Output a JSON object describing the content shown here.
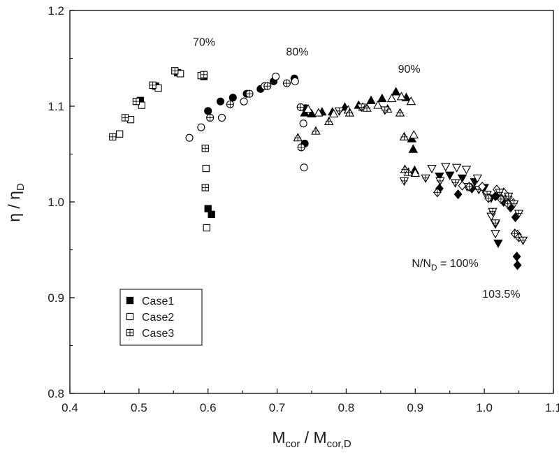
{
  "chart_data": {
    "type": "scatter",
    "title": "",
    "xlabel": {
      "main": "M",
      "sub": "cor",
      "mid": " / M",
      "sub2": "cor,D"
    },
    "ylabel": {
      "main": "η / η",
      "sub": "D"
    },
    "xlim": [
      0.4,
      1.1
    ],
    "ylim": [
      0.8,
      1.2
    ],
    "xticks": [
      "0.4",
      "0.5",
      "0.6",
      "0.7",
      "0.8",
      "0.9",
      "1.0",
      "1.1"
    ],
    "yticks": [
      "0.8",
      "0.9",
      "1.0",
      "1.1",
      "1.2"
    ],
    "grid": false,
    "legend_position": "bottom-left",
    "legend": [
      {
        "label": "Case1",
        "marker": "filled-square"
      },
      {
        "label": "Case2",
        "marker": "open-square"
      },
      {
        "label": "Case3",
        "marker": "crossed-square"
      }
    ],
    "annotations": [
      {
        "text": "70%",
        "x": 0.578,
        "y": 1.163
      },
      {
        "text": "80%",
        "x": 0.713,
        "y": 1.153
      },
      {
        "text": "90%",
        "x": 0.875,
        "y": 1.135
      },
      {
        "parts": [
          "N/N",
          "D",
          " = 100%"
        ],
        "x": 0.895,
        "y": 0.932
      },
      {
        "text": "103.5%",
        "x": 0.997,
        "y": 0.9
      }
    ],
    "series": [
      {
        "name": "Case1",
        "speed": "70%",
        "marker": "square",
        "style": "filled",
        "x": [
          0.502,
          0.524,
          0.556,
          0.594,
          0.6,
          0.605
        ],
        "y": [
          1.106,
          1.121,
          1.135,
          1.131,
          0.993,
          0.987
        ]
      },
      {
        "name": "Case2",
        "speed": "70%",
        "marker": "square",
        "style": "open",
        "x": [
          0.472,
          0.488,
          0.504,
          0.528,
          0.56,
          0.59,
          0.597,
          0.598
        ],
        "y": [
          1.071,
          1.086,
          1.101,
          1.119,
          1.134,
          1.132,
          1.035,
          0.973
        ]
      },
      {
        "name": "Case3",
        "speed": "70%",
        "marker": "square",
        "style": "crossed",
        "x": [
          0.462,
          0.48,
          0.496,
          0.52,
          0.552,
          0.594,
          0.596,
          0.596
        ],
        "y": [
          1.068,
          1.088,
          1.105,
          1.122,
          1.137,
          1.133,
          1.056,
          1.015
        ]
      },
      {
        "name": "Case1",
        "speed": "80%",
        "marker": "circle",
        "style": "filled",
        "x": [
          0.6,
          0.618,
          0.636,
          0.656,
          0.676,
          0.695,
          0.725,
          0.741,
          0.74
        ],
        "y": [
          1.095,
          1.105,
          1.109,
          1.113,
          1.118,
          1.126,
          1.129,
          1.098,
          1.061
        ]
      },
      {
        "name": "Case2",
        "speed": "80%",
        "marker": "circle",
        "style": "open",
        "x": [
          0.573,
          0.59,
          0.62,
          0.652,
          0.682,
          0.698,
          0.726,
          0.738,
          0.739
        ],
        "y": [
          1.067,
          1.078,
          1.088,
          1.105,
          1.121,
          1.131,
          1.126,
          1.082,
          1.036
        ]
      },
      {
        "name": "Case3",
        "speed": "80%",
        "marker": "circle",
        "style": "crossed",
        "x": [
          0.603,
          0.632,
          0.66,
          0.686,
          0.714,
          0.734,
          0.735
        ],
        "y": [
          1.088,
          1.102,
          1.113,
          1.121,
          1.124,
          1.099,
          1.057
        ]
      },
      {
        "name": "Case1",
        "speed": "90%",
        "marker": "triangle-up",
        "style": "filled",
        "x": [
          0.74,
          0.75,
          0.765,
          0.78,
          0.798,
          0.818,
          0.836,
          0.852,
          0.872,
          0.887,
          0.895,
          0.897,
          0.899
        ],
        "y": [
          1.093,
          1.092,
          1.094,
          1.094,
          1.099,
          1.101,
          1.106,
          1.108,
          1.115,
          1.109,
          1.066,
          1.055,
          1.033
        ]
      },
      {
        "name": "Case2",
        "speed": "90%",
        "marker": "triangle-up",
        "style": "open",
        "x": [
          0.745,
          0.76,
          0.782,
          0.803,
          0.824,
          0.846,
          0.866,
          0.88,
          0.894,
          0.898,
          0.9
        ],
        "y": [
          1.097,
          1.093,
          1.092,
          1.096,
          1.099,
          1.101,
          1.108,
          1.11,
          1.105,
          1.07,
          1.03
        ]
      },
      {
        "name": "Case3",
        "speed": "90%",
        "marker": "triangle-up",
        "style": "crossed",
        "x": [
          0.73,
          0.756,
          0.775,
          0.805,
          0.83,
          0.86,
          0.878,
          0.884,
          0.885,
          0.89
        ],
        "y": [
          1.067,
          1.074,
          1.084,
          1.093,
          1.098,
          1.097,
          1.093,
          1.068,
          1.034,
          1.031
        ]
      },
      {
        "name": "Case3",
        "speed": "90%",
        "marker": "triangle-down",
        "style": "crossed",
        "x": [
          0.79,
          0.822,
          0.856,
          0.884,
          0.915
        ],
        "y": [
          1.095,
          1.099,
          1.096,
          1.022,
          1.025
        ]
      },
      {
        "name": "Case1",
        "speed": "100%",
        "marker": "triangle-down",
        "style": "filled",
        "x": [
          0.935,
          0.95,
          0.968,
          0.986,
          1.0,
          1.01,
          1.016,
          1.02
        ],
        "y": [
          1.027,
          1.028,
          1.025,
          1.021,
          1.015,
          1.004,
          0.977,
          0.957
        ]
      },
      {
        "name": "Case2",
        "speed": "100%",
        "marker": "triangle-down",
        "style": "open",
        "x": [
          0.924,
          0.944,
          0.96,
          0.974,
          0.99,
          1.003,
          1.01,
          1.016
        ],
        "y": [
          1.035,
          1.037,
          1.036,
          1.034,
          1.025,
          1.007,
          0.985,
          0.967
        ]
      },
      {
        "name": "Case3",
        "speed": "100%",
        "marker": "triangle-down",
        "style": "crossed",
        "x": [
          0.936,
          0.958,
          0.975,
          0.992,
          1.004,
          1.012,
          1.016
        ],
        "y": [
          1.022,
          1.02,
          1.016,
          1.013,
          1.008,
          0.99,
          0.978
        ]
      },
      {
        "name": "Case1",
        "speed": "103.5%",
        "marker": "diamond",
        "style": "filled",
        "x": [
          0.935,
          0.962,
          0.982,
          1.016,
          1.028,
          1.038,
          1.045,
          1.047,
          1.048
        ],
        "y": [
          1.014,
          1.008,
          1.014,
          1.006,
          1.0,
          0.994,
          0.984,
          0.943,
          0.934
        ]
      },
      {
        "name": "Case2",
        "speed": "103.5%",
        "marker": "diamond",
        "style": "open",
        "x": [
          0.968,
          0.997,
          1.018,
          1.028,
          1.035,
          1.042,
          1.048
        ],
        "y": [
          1.017,
          1.016,
          1.013,
          1.01,
          1.005,
          0.999,
          0.966
        ]
      },
      {
        "name": "Case3",
        "speed": "103.5%",
        "marker": "diamond",
        "style": "crossed",
        "x": [
          0.932,
          0.978,
          1.006,
          1.024,
          1.034,
          1.044,
          1.05
        ],
        "y": [
          1.01,
          1.016,
          1.004,
          1.003,
          0.998,
          0.967,
          0.963
        ]
      },
      {
        "name": "Case3",
        "speed": "103.5%",
        "marker": "triangle-down",
        "style": "crossed",
        "x": [
          1.022,
          1.035,
          1.043,
          1.05,
          1.056
        ],
        "y": [
          1.01,
          1.006,
          0.998,
          0.988,
          0.96
        ]
      }
    ]
  }
}
